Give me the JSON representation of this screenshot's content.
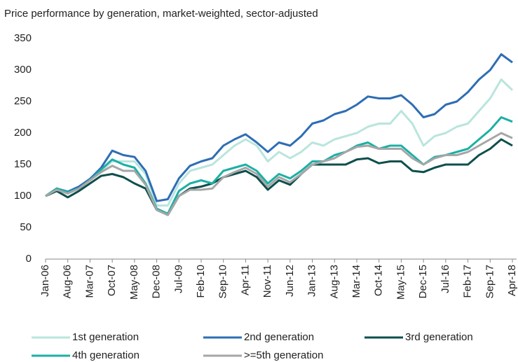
{
  "chart_data": {
    "type": "line",
    "title": "Price performance by generation, market-weighted, sector-adjusted",
    "categories": [
      "Jan-06",
      null,
      "Aug-06",
      null,
      "Mar-07",
      null,
      "Oct-07",
      null,
      "May-08",
      null,
      "Dec-08",
      null,
      "Jul-09",
      null,
      "Feb-10",
      null,
      "Sep-10",
      null,
      "Apr-11",
      null,
      "Nov-11",
      null,
      "Jun-12",
      null,
      "Jan-13",
      null,
      "Aug-13",
      null,
      "Mar-14",
      null,
      "Oct-14",
      null,
      "May-15",
      null,
      "Dec-15",
      null,
      "Jul-16",
      null,
      "Feb-17",
      null,
      "Sep-17",
      null,
      "Apr-18"
    ],
    "series": [
      {
        "name": "1st generation",
        "color": "#b9e5dd",
        "values": [
          100,
          110,
          105,
          115,
          128,
          140,
          155,
          155,
          155,
          135,
          85,
          85,
          120,
          140,
          145,
          150,
          165,
          180,
          190,
          180,
          155,
          170,
          160,
          170,
          185,
          180,
          190,
          195,
          200,
          210,
          215,
          215,
          235,
          215,
          180,
          195,
          200,
          210,
          215,
          235,
          255,
          285,
          268
        ]
      },
      {
        "name": "2nd generation",
        "color": "#2e6db5",
        "values": [
          100,
          112,
          107,
          115,
          127,
          145,
          172,
          165,
          162,
          140,
          92,
          95,
          128,
          148,
          155,
          160,
          180,
          190,
          198,
          185,
          170,
          185,
          180,
          195,
          215,
          220,
          230,
          235,
          245,
          258,
          255,
          255,
          260,
          245,
          225,
          230,
          245,
          250,
          265,
          285,
          300,
          325,
          312
        ]
      },
      {
        "name": "3rd generation",
        "color": "#0d4f4c",
        "values": [
          100,
          108,
          98,
          108,
          120,
          132,
          135,
          130,
          120,
          112,
          78,
          70,
          100,
          112,
          115,
          120,
          130,
          135,
          140,
          130,
          110,
          125,
          118,
          135,
          150,
          150,
          150,
          150,
          158,
          160,
          152,
          155,
          155,
          140,
          138,
          145,
          150,
          150,
          150,
          165,
          175,
          190,
          180
        ]
      },
      {
        "name": "4th generation",
        "color": "#1bb0a6",
        "values": [
          100,
          112,
          106,
          112,
          125,
          142,
          158,
          150,
          145,
          120,
          80,
          72,
          108,
          120,
          125,
          120,
          140,
          145,
          150,
          140,
          120,
          135,
          128,
          140,
          155,
          155,
          165,
          170,
          180,
          185,
          175,
          180,
          180,
          165,
          150,
          162,
          165,
          170,
          175,
          190,
          205,
          225,
          218
        ]
      },
      {
        "name": ">=5th generation",
        "color": "#a6a6a6",
        "values": [
          100,
          110,
          104,
          112,
          125,
          138,
          148,
          140,
          140,
          118,
          78,
          70,
          100,
          110,
          110,
          112,
          130,
          138,
          145,
          135,
          115,
          130,
          122,
          135,
          150,
          155,
          160,
          170,
          178,
          180,
          175,
          175,
          175,
          160,
          150,
          160,
          165,
          165,
          170,
          180,
          190,
          200,
          192
        ]
      }
    ],
    "ylim": [
      0,
      350
    ],
    "yticks": [
      0,
      50,
      100,
      150,
      200,
      250,
      300,
      350
    ]
  }
}
